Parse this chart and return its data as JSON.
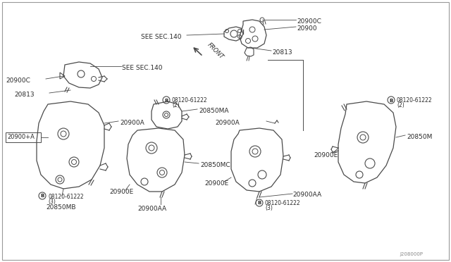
{
  "background_color": "#ffffff",
  "line_color": "#4a4a4a",
  "text_color": "#2a2a2a",
  "watermark": "J208000P",
  "border_color": "#888888",
  "parts_labels": {
    "20900C_top": "20900C",
    "20900": "20900",
    "20813_top": "20813",
    "20813_left": "20813",
    "see140_top": "SEE SEC.140",
    "see140_left": "SEE SEC.140",
    "front": "FRONT",
    "20900A_top": "20900A",
    "20900A_left": "20900A",
    "20900pA": "20900+A",
    "20850MA": "20850MA",
    "20850MC": "20850MC",
    "20850MB": "20850MB",
    "20850M": "20850M",
    "20900E_ctr": "20900E",
    "20900E_right": "20900E",
    "20900AA_ctr": "20900AA",
    "20900AA_right": "20900AA",
    "bolt_label": "08120-61222",
    "bolt2": "(2)",
    "bolt3": "(3)"
  }
}
